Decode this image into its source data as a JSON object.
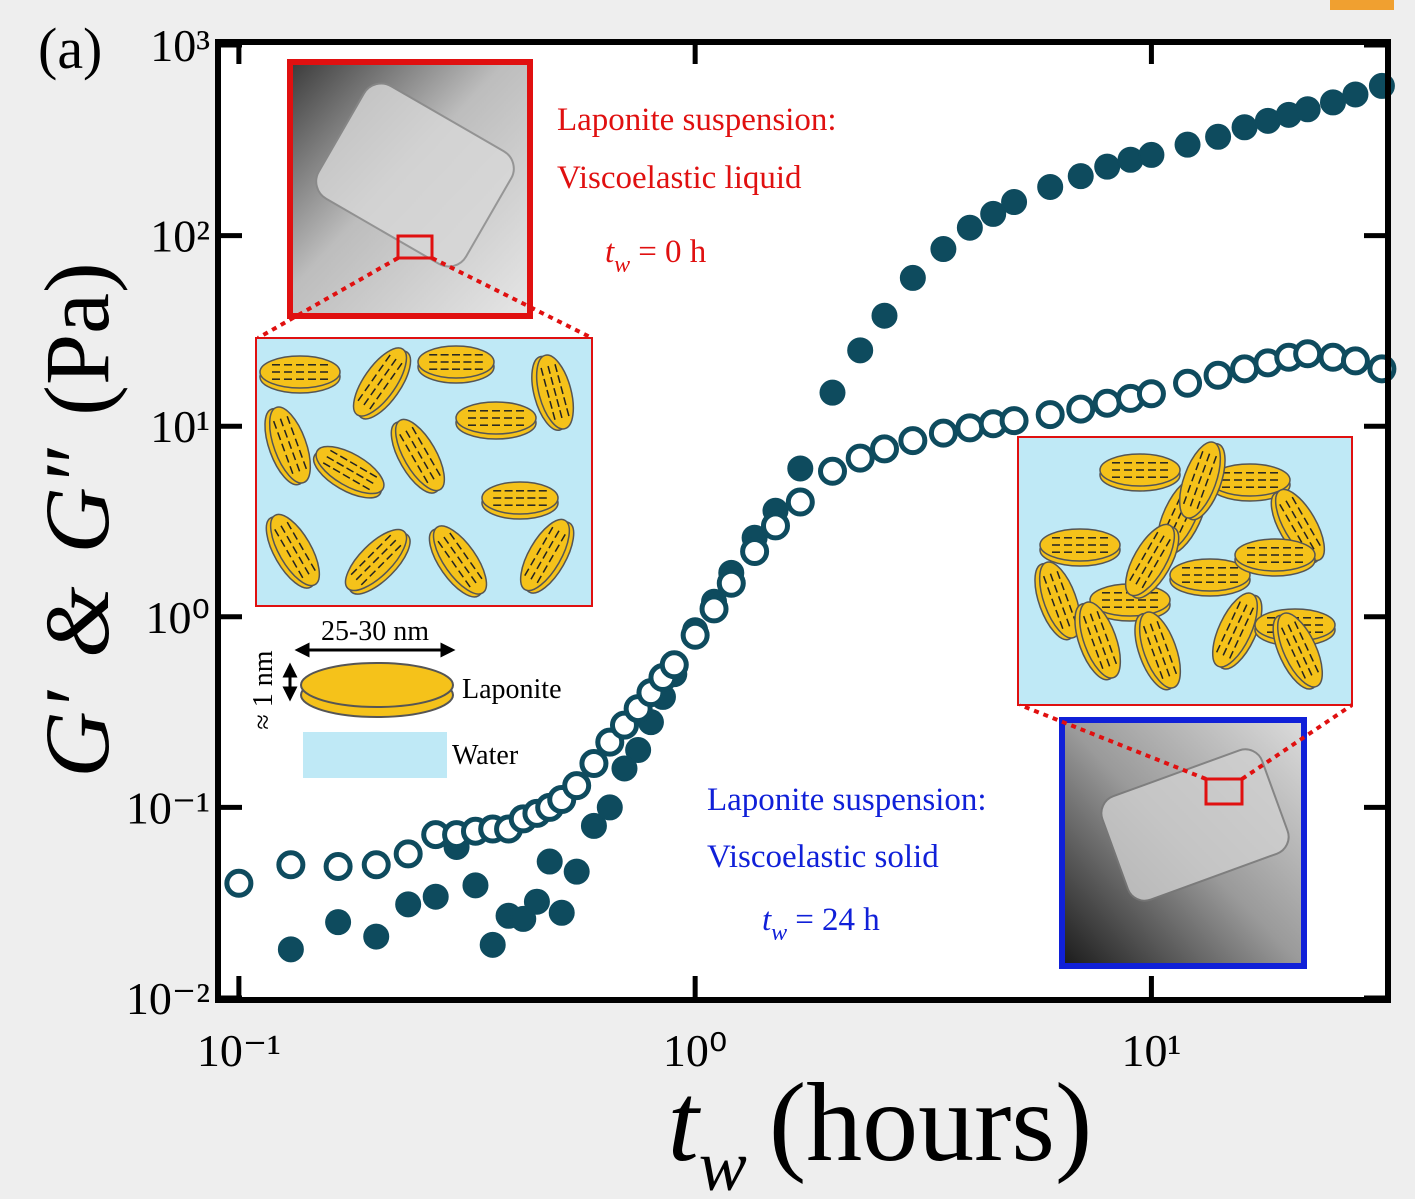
{
  "chart_data": {
    "type": "scatter",
    "panel_label": "(a)",
    "xlabel": [
      "t",
      "w",
      "(hours)"
    ],
    "ylabel": [
      "G′",
      "&",
      "G″",
      "(Pa)"
    ],
    "xscale": "log",
    "yscale": "log",
    "xlim": [
      0.09,
      33
    ],
    "ylim": [
      0.01,
      1000
    ],
    "xticks": [
      {
        "value": 0.1,
        "label": "10⁻¹"
      },
      {
        "value": 1,
        "label": "10⁰"
      },
      {
        "value": 10,
        "label": "10¹"
      }
    ],
    "yticks": [
      {
        "value": 0.01,
        "label": "10⁻²"
      },
      {
        "value": 0.1,
        "label": "10⁻¹"
      },
      {
        "value": 1,
        "label": "10⁰"
      },
      {
        "value": 10,
        "label": "10¹"
      },
      {
        "value": 100,
        "label": "10²"
      },
      {
        "value": 1000,
        "label": "10³"
      }
    ],
    "x": [
      0.1,
      0.13,
      0.165,
      0.2,
      0.235,
      0.27,
      0.3,
      0.33,
      0.36,
      0.39,
      0.42,
      0.45,
      0.48,
      0.51,
      0.55,
      0.6,
      0.65,
      0.7,
      0.75,
      0.8,
      0.85,
      0.9,
      1.0,
      1.1,
      1.2,
      1.35,
      1.5,
      1.7,
      2,
      2.3,
      2.6,
      3,
      3.5,
      4,
      4.5,
      5,
      6,
      7,
      8,
      9,
      10,
      12,
      14,
      16,
      18,
      20,
      22,
      25,
      28,
      32
    ],
    "series": [
      {
        "color": "#0e4b5e",
        "marker": "filled",
        "values": [
          null,
          0.018,
          0.025,
          0.021,
          0.031,
          0.034,
          0.062,
          0.039,
          0.019,
          0.027,
          0.026,
          0.032,
          0.052,
          0.028,
          0.046,
          0.08,
          0.1,
          0.16,
          0.2,
          0.28,
          0.38,
          0.5,
          0.85,
          1.2,
          1.7,
          2.6,
          3.6,
          6,
          15,
          25,
          38,
          60,
          85,
          110,
          130,
          150,
          180,
          205,
          230,
          250,
          265,
          300,
          330,
          370,
          400,
          430,
          460,
          500,
          550,
          610
        ]
      },
      {
        "color": "#0e4b5e",
        "marker": "open",
        "values": [
          0.04,
          0.05,
          0.049,
          0.05,
          0.057,
          0.072,
          0.072,
          0.075,
          0.077,
          0.077,
          0.087,
          0.093,
          0.1,
          0.11,
          0.13,
          0.17,
          0.22,
          0.27,
          0.33,
          0.4,
          0.48,
          0.56,
          0.8,
          1.1,
          1.5,
          2.2,
          3.0,
          4,
          5.8,
          6.8,
          7.6,
          8.4,
          9.2,
          9.8,
          10.3,
          10.7,
          11.5,
          12.3,
          13.2,
          14,
          14.8,
          16.8,
          18.5,
          20,
          21.5,
          23,
          24,
          23,
          22,
          20
        ]
      }
    ],
    "annotations": {
      "liquid": [
        "Laponite suspension:",
        "Viscoelastic liquid"
      ],
      "liquid_time": [
        "t",
        "w",
        "= 0 h"
      ],
      "solid": [
        "Laponite suspension:",
        "Viscoelastic solid"
      ],
      "solid_time": [
        "t",
        "w",
        "= 24 h"
      ],
      "disc_width": "25-30 nm",
      "disc_height": "≈ 1 nm",
      "disc": "Laponite",
      "water": "Water"
    }
  }
}
